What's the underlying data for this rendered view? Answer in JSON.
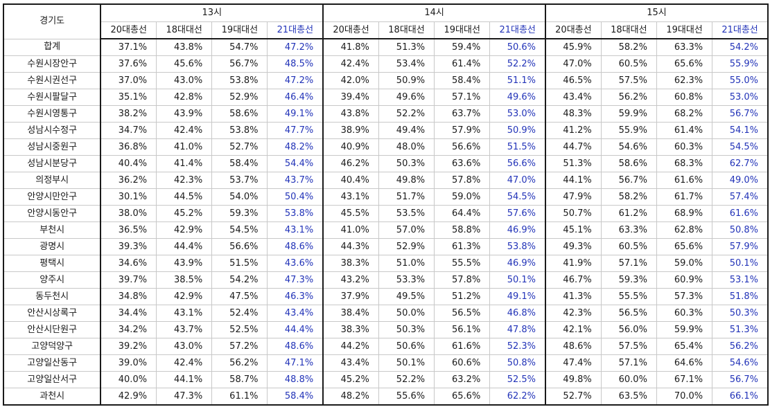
{
  "sheet": {
    "region_header": "경기도",
    "elections": [
      "20대총선",
      "18대대선",
      "19대대선",
      "21대총선"
    ],
    "highlight_election_index": 3,
    "hours": [
      {
        "label": "13시"
      },
      {
        "label": "14시"
      },
      {
        "label": "15시"
      }
    ],
    "colors": {
      "highlight_text": "#2233b8",
      "grid_line": "#c8c8c8",
      "group_border": "#1a1a1a"
    },
    "rows": [
      {
        "region": "합계",
        "values": [
          "37.1%",
          "43.8%",
          "54.7%",
          "47.2%",
          "41.8%",
          "51.3%",
          "59.4%",
          "50.6%",
          "45.9%",
          "58.2%",
          "63.3%",
          "54.2%"
        ]
      },
      {
        "region": "수원시장안구",
        "values": [
          "37.6%",
          "45.6%",
          "56.7%",
          "48.5%",
          "42.4%",
          "53.4%",
          "61.4%",
          "52.2%",
          "47.0%",
          "60.5%",
          "65.6%",
          "55.9%"
        ]
      },
      {
        "region": "수원시권선구",
        "values": [
          "37.0%",
          "43.0%",
          "53.8%",
          "47.2%",
          "42.0%",
          "50.9%",
          "58.4%",
          "51.1%",
          "46.5%",
          "57.5%",
          "62.3%",
          "55.0%"
        ]
      },
      {
        "region": "수원시팔달구",
        "values": [
          "35.1%",
          "42.8%",
          "52.9%",
          "46.4%",
          "39.4%",
          "49.6%",
          "57.1%",
          "49.6%",
          "43.4%",
          "56.2%",
          "60.8%",
          "53.0%"
        ]
      },
      {
        "region": "수원시영통구",
        "values": [
          "38.2%",
          "43.9%",
          "58.6%",
          "49.1%",
          "43.8%",
          "52.2%",
          "63.7%",
          "53.0%",
          "48.3%",
          "59.9%",
          "68.2%",
          "56.7%"
        ]
      },
      {
        "region": "성남시수정구",
        "values": [
          "34.7%",
          "42.4%",
          "53.8%",
          "47.7%",
          "38.9%",
          "49.4%",
          "57.9%",
          "50.9%",
          "41.2%",
          "55.9%",
          "61.4%",
          "54.1%"
        ]
      },
      {
        "region": "성남시중원구",
        "values": [
          "36.8%",
          "41.0%",
          "52.7%",
          "48.2%",
          "40.9%",
          "48.0%",
          "56.6%",
          "51.5%",
          "44.7%",
          "54.6%",
          "60.3%",
          "54.5%"
        ]
      },
      {
        "region": "성남시분당구",
        "values": [
          "40.4%",
          "41.4%",
          "58.4%",
          "54.4%",
          "46.2%",
          "50.3%",
          "63.6%",
          "56.6%",
          "51.3%",
          "58.6%",
          "68.3%",
          "62.7%"
        ]
      },
      {
        "region": "의정부시",
        "values": [
          "36.2%",
          "42.3%",
          "53.7%",
          "43.7%",
          "40.4%",
          "49.8%",
          "57.8%",
          "47.0%",
          "44.1%",
          "56.7%",
          "61.6%",
          "49.0%"
        ]
      },
      {
        "region": "안양시만안구",
        "values": [
          "30.1%",
          "44.5%",
          "54.0%",
          "50.4%",
          "43.1%",
          "51.7%",
          "59.0%",
          "54.5%",
          "47.9%",
          "58.2%",
          "61.7%",
          "57.4%"
        ]
      },
      {
        "region": "안양시동안구",
        "values": [
          "38.0%",
          "45.2%",
          "59.3%",
          "53.8%",
          "45.5%",
          "53.5%",
          "64.4%",
          "57.6%",
          "50.7%",
          "61.2%",
          "68.9%",
          "61.6%"
        ]
      },
      {
        "region": "부천시",
        "values": [
          "36.5%",
          "42.9%",
          "54.5%",
          "43.1%",
          "41.0%",
          "57.0%",
          "58.8%",
          "46.9%",
          "45.1%",
          "63.3%",
          "62.8%",
          "50.8%"
        ]
      },
      {
        "region": "광명시",
        "values": [
          "39.3%",
          "44.4%",
          "56.6%",
          "48.6%",
          "44.3%",
          "52.9%",
          "61.3%",
          "53.8%",
          "49.3%",
          "60.5%",
          "65.6%",
          "57.9%"
        ]
      },
      {
        "region": "평택시",
        "values": [
          "34.6%",
          "43.9%",
          "51.5%",
          "43.6%",
          "38.3%",
          "51.0%",
          "55.5%",
          "46.9%",
          "41.9%",
          "57.1%",
          "59.0%",
          "50.1%"
        ]
      },
      {
        "region": "양주시",
        "values": [
          "39.7%",
          "38.5%",
          "54.2%",
          "47.3%",
          "43.2%",
          "53.3%",
          "57.8%",
          "50.1%",
          "46.7%",
          "59.3%",
          "60.9%",
          "53.1%"
        ]
      },
      {
        "region": "동두천시",
        "values": [
          "34.8%",
          "42.9%",
          "47.5%",
          "46.3%",
          "37.9%",
          "49.5%",
          "51.2%",
          "49.1%",
          "41.3%",
          "55.5%",
          "57.3%",
          "51.8%"
        ]
      },
      {
        "region": "안산시상록구",
        "values": [
          "34.4%",
          "43.1%",
          "52.4%",
          "43.4%",
          "38.4%",
          "50.0%",
          "56.5%",
          "46.8%",
          "42.3%",
          "56.5%",
          "60.3%",
          "50.3%"
        ]
      },
      {
        "region": "안산시단원구",
        "values": [
          "34.2%",
          "43.7%",
          "52.5%",
          "44.4%",
          "38.3%",
          "50.3%",
          "56.1%",
          "47.8%",
          "42.1%",
          "56.0%",
          "59.9%",
          "51.3%"
        ]
      },
      {
        "region": "고양덕양구",
        "values": [
          "39.2%",
          "43.0%",
          "57.2%",
          "48.6%",
          "44.2%",
          "50.6%",
          "61.6%",
          "52.3%",
          "48.6%",
          "57.5%",
          "65.4%",
          "56.2%"
        ]
      },
      {
        "region": "고양일산동구",
        "values": [
          "39.0%",
          "42.4%",
          "56.2%",
          "47.1%",
          "43.4%",
          "50.1%",
          "60.6%",
          "50.8%",
          "47.4%",
          "57.1%",
          "64.6%",
          "54.6%"
        ]
      },
      {
        "region": "고양일산서구",
        "values": [
          "40.0%",
          "44.1%",
          "58.7%",
          "48.8%",
          "45.2%",
          "52.2%",
          "63.2%",
          "52.5%",
          "49.8%",
          "60.0%",
          "67.1%",
          "56.7%"
        ]
      },
      {
        "region": "과천시",
        "values": [
          "42.9%",
          "47.3%",
          "61.1%",
          "58.4%",
          "48.2%",
          "55.6%",
          "65.6%",
          "62.2%",
          "52.7%",
          "63.5%",
          "70.0%",
          "66.1%"
        ]
      }
    ]
  }
}
